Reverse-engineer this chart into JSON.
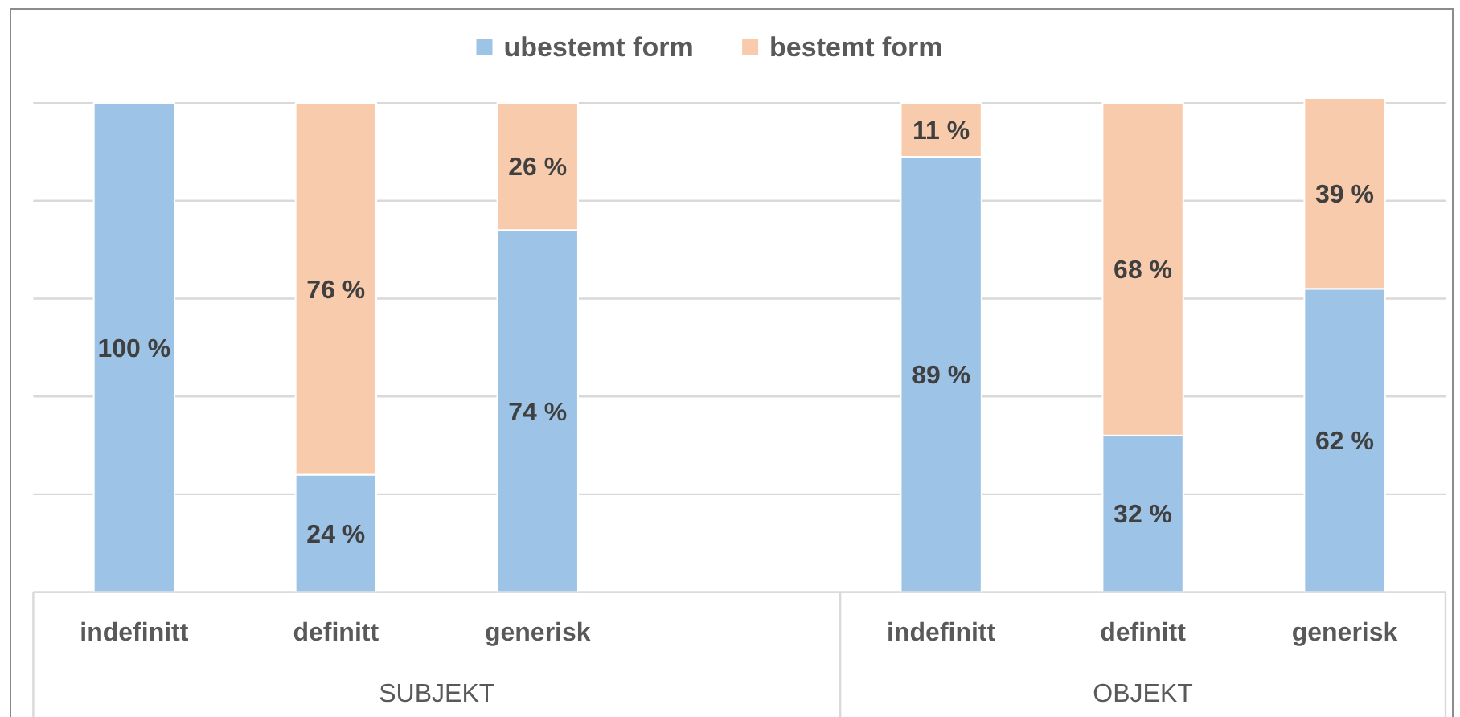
{
  "chart_data": {
    "type": "bar",
    "stacked": true,
    "categories": [
      "indefinitt",
      "definitt",
      "generisk",
      null,
      "indefinitt",
      "definitt",
      "generisk"
    ],
    "series": [
      {
        "name": "ubestemt form",
        "color": "#9dc3e6",
        "values": [
          100,
          24,
          74,
          null,
          89,
          32,
          62
        ],
        "value_labels": [
          "100 %",
          "24 %",
          "74 %",
          null,
          "89 %",
          "32 %",
          "62 %"
        ]
      },
      {
        "name": "bestemt form",
        "color": "#f8cbad",
        "values": [
          0,
          76,
          26,
          null,
          11,
          68,
          39
        ],
        "value_labels": [
          null,
          "76 %",
          "26 %",
          null,
          "11 %",
          "68 %",
          "39 %"
        ]
      }
    ],
    "ylim": [
      0,
      101
    ],
    "yticks": [
      {
        "value": 0,
        "label": null
      },
      {
        "value": 20,
        "label": null
      },
      {
        "value": 40,
        "label": null
      },
      {
        "value": 60,
        "label": null
      },
      {
        "value": 80,
        "label": null
      },
      {
        "value": 100,
        "label": null
      }
    ],
    "grid": "y",
    "tick_labels": "x",
    "legend": "top",
    "annotations": [
      "SUBJEKT",
      "OBJEKT"
    ]
  }
}
